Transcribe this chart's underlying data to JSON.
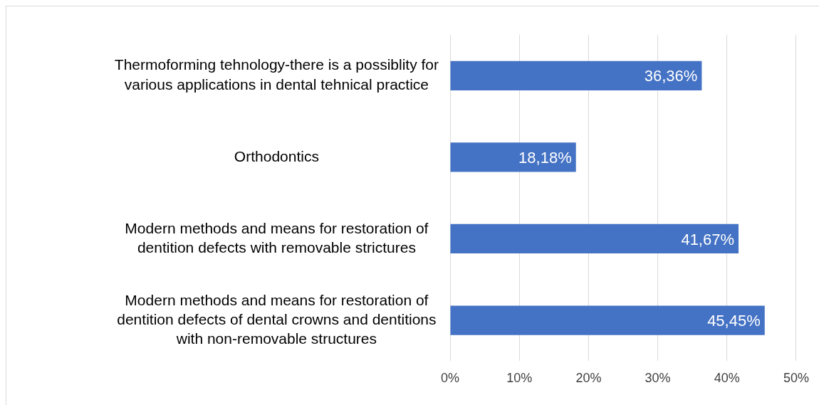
{
  "chart_data": {
    "type": "bar",
    "orientation": "horizontal",
    "categories": [
      "Thermoforming tehnology-there is a possiblity for various applications in dental tehnical practice",
      "Orthodontics",
      "Modern methods and means for restoration of dentition defects with removable strictures",
      "Modern methods and means for restoration of dentition defects of dental crowns and dentitions with non-removable structures"
    ],
    "values": [
      36.36,
      18.18,
      41.67,
      45.45
    ],
    "value_labels": [
      "36,36%",
      "18,18%",
      "41,67%",
      "45,45%"
    ],
    "color": "#4472c4",
    "xlim": [
      0,
      50
    ],
    "xticks": [
      {
        "value": 0,
        "label": "0%"
      },
      {
        "value": 10,
        "label": "10%"
      },
      {
        "value": 20,
        "label": "20%"
      },
      {
        "value": 30,
        "label": "30%"
      },
      {
        "value": 40,
        "label": "40%"
      },
      {
        "value": 50,
        "label": "50%"
      }
    ],
    "grid": "x",
    "legend": false
  }
}
